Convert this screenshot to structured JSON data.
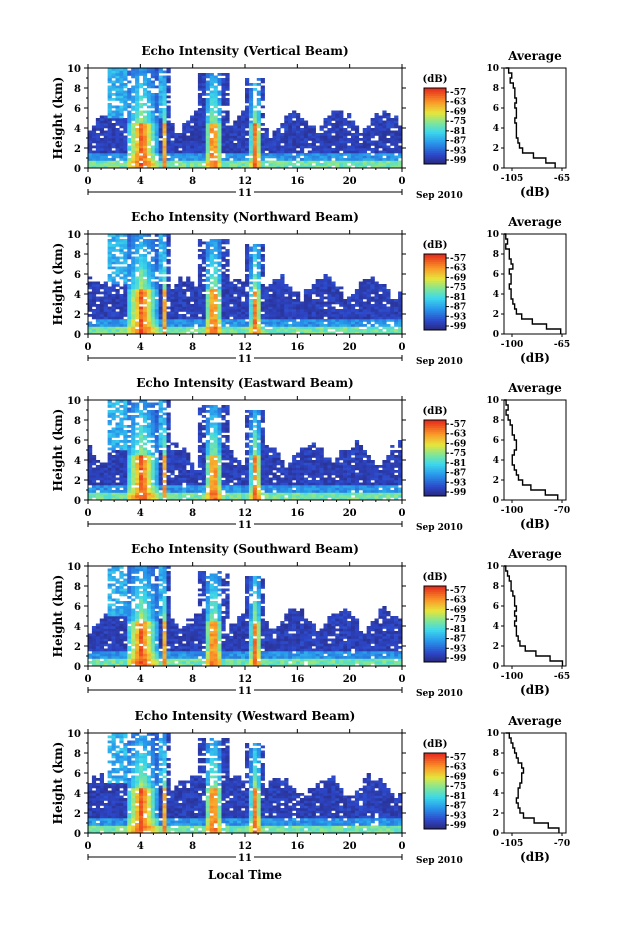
{
  "figure": {
    "xlabel": "Local Time",
    "date_label": "Sep 2010",
    "day_label": "11",
    "colorbar_unit": "(dB)",
    "colorbar_ticks": [
      "-57",
      "-63",
      "-69",
      "-75",
      "-81",
      "-87",
      "-93",
      "-99"
    ],
    "avg_title": "Average",
    "avg_xlabel": "(dB)"
  },
  "chart_data": [
    {
      "type": "heatmap",
      "title": "Echo Intensity (Vertical Beam)",
      "ylabel": "Height (km)",
      "xticks": [
        "0",
        "4",
        "8",
        "12",
        "16",
        "20",
        "0"
      ],
      "yticks": [
        "0",
        "2",
        "4",
        "6",
        "8",
        "10"
      ],
      "xlim": [
        0,
        24
      ],
      "ylim": [
        0,
        10
      ],
      "color_range": [
        -99,
        -57
      ],
      "average_profile": {
        "xlim": [
          -105,
          -65
        ],
        "xticks": [
          "-105",
          "-65"
        ],
        "height": [
          0,
          0.5,
          1,
          1.5,
          2,
          2.5,
          3,
          3.5,
          4,
          4.5,
          5,
          5.5,
          6,
          6.5,
          7,
          7.5,
          8,
          8.5,
          9,
          9.5,
          10
        ],
        "db": [
          -72,
          -78,
          -86,
          -93,
          -95,
          -96,
          -97,
          -97,
          -97,
          -98,
          -97,
          -97,
          -98,
          -97,
          -98,
          -98,
          -99,
          -101,
          -100,
          -102,
          -104
        ]
      }
    },
    {
      "type": "heatmap",
      "title": "Echo Intensity (Northward Beam)",
      "ylabel": "Height (km)",
      "xticks": [
        "0",
        "4",
        "8",
        "12",
        "16",
        "20",
        "0"
      ],
      "yticks": [
        "0",
        "2",
        "4",
        "6",
        "8",
        "10"
      ],
      "xlim": [
        0,
        24
      ],
      "ylim": [
        0,
        10
      ],
      "color_range": [
        -99,
        -57
      ],
      "average_profile": {
        "xlim": [
          -100,
          -65
        ],
        "xticks": [
          "-100",
          "-65"
        ],
        "height": [
          0,
          0.5,
          1,
          1.5,
          2,
          2.5,
          3,
          3.5,
          4,
          4.5,
          5,
          5.5,
          6,
          6.5,
          7,
          7.5,
          8,
          8.5,
          9,
          9.5,
          10
        ],
        "db": [
          -68,
          -76,
          -84,
          -90,
          -93,
          -94,
          -95,
          -96,
          -96,
          -97,
          -96,
          -96,
          -97,
          -95,
          -96,
          -97,
          -97,
          -99,
          -98,
          -99,
          -100
        ]
      }
    },
    {
      "type": "heatmap",
      "title": "Echo Intensity (Eastward Beam)",
      "ylabel": "Height (km)",
      "xticks": [
        "0",
        "4",
        "8",
        "12",
        "16",
        "20",
        "0"
      ],
      "yticks": [
        "0",
        "2",
        "4",
        "6",
        "8",
        "10"
      ],
      "xlim": [
        0,
        24
      ],
      "ylim": [
        0,
        10
      ],
      "color_range": [
        -99,
        -57
      ],
      "average_profile": {
        "xlim": [
          -100,
          -70
        ],
        "xticks": [
          "-100",
          "-70"
        ],
        "height": [
          0,
          0.5,
          1,
          1.5,
          2,
          2.5,
          3,
          3.5,
          4,
          4.5,
          5,
          5.5,
          6,
          6.5,
          7,
          7.5,
          8,
          8.5,
          9,
          9.5,
          10
        ],
        "db": [
          -74,
          -80,
          -87,
          -91,
          -93,
          -94,
          -95,
          -96,
          -96,
          -95,
          -94,
          -94,
          -95,
          -96,
          -96,
          -97,
          -98,
          -99,
          -98,
          -99,
          -100
        ]
      }
    },
    {
      "type": "heatmap",
      "title": "Echo Intensity (Southward Beam)",
      "ylabel": "Height (km)",
      "xticks": [
        "0",
        "4",
        "8",
        "12",
        "16",
        "20",
        "0"
      ],
      "yticks": [
        "0",
        "2",
        "4",
        "6",
        "8",
        "10"
      ],
      "xlim": [
        0,
        24
      ],
      "ylim": [
        0,
        10
      ],
      "color_range": [
        -99,
        -57
      ],
      "average_profile": {
        "xlim": [
          -100,
          -65
        ],
        "xticks": [
          "-100",
          "-65"
        ],
        "height": [
          0,
          0.5,
          1,
          1.5,
          2,
          2.5,
          3,
          3.5,
          4,
          4.5,
          5,
          5.5,
          6,
          6.5,
          7,
          7.5,
          8,
          8.5,
          9,
          9.5,
          10
        ],
        "db": [
          -67,
          -74,
          -82,
          -88,
          -91,
          -92,
          -93,
          -93,
          -94,
          -93,
          -94,
          -93,
          -94,
          -94,
          -95,
          -96,
          -96,
          -97,
          -98,
          -99,
          -100
        ]
      }
    },
    {
      "type": "heatmap",
      "title": "Echo Intensity (Westward Beam)",
      "ylabel": "Height (km)",
      "xticks": [
        "0",
        "4",
        "8",
        "12",
        "16",
        "20",
        "0"
      ],
      "yticks": [
        "0",
        "2",
        "4",
        "6",
        "8",
        "10"
      ],
      "xlim": [
        0,
        24
      ],
      "ylim": [
        0,
        10
      ],
      "color_range": [
        -99,
        -57
      ],
      "average_profile": {
        "xlim": [
          -105,
          -70
        ],
        "xticks": [
          "-105",
          "-70"
        ],
        "height": [
          0,
          0.5,
          1,
          1.5,
          2,
          2.5,
          3,
          3.5,
          4,
          4.5,
          5,
          5.5,
          6,
          6.5,
          7,
          7.5,
          8,
          8.5,
          9,
          9.5,
          10
        ],
        "db": [
          -74,
          -80,
          -88,
          -94,
          -96,
          -97,
          -98,
          -97,
          -97,
          -96,
          -95,
          -95,
          -94,
          -95,
          -97,
          -98,
          -99,
          -100,
          -101,
          -102,
          -104
        ]
      }
    }
  ]
}
